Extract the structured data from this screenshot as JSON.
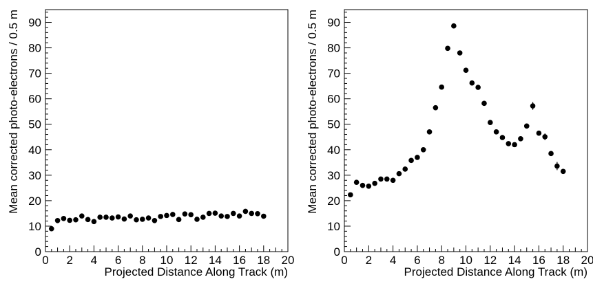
{
  "chart_data": [
    {
      "type": "scatter",
      "xlabel": "Projected Distance Along Track (m)",
      "ylabel": "Mean corrected photo-electrons / 0.5 m",
      "xlim": [
        0,
        20
      ],
      "ylim": [
        0,
        95
      ],
      "x_ticks": [
        "0",
        "2",
        "4",
        "6",
        "8",
        "10",
        "12",
        "14",
        "16",
        "18",
        "20"
      ],
      "y_ticks": [
        "0",
        "10",
        "20",
        "30",
        "40",
        "50",
        "60",
        "70",
        "80",
        "90"
      ],
      "grid": false,
      "series": [
        {
          "points": [
            [
              0.5,
              9.0
            ],
            [
              1.0,
              12.2
            ],
            [
              1.5,
              13.0
            ],
            [
              2.0,
              12.3
            ],
            [
              2.5,
              12.5
            ],
            [
              3.0,
              14.0
            ],
            [
              3.5,
              12.6
            ],
            [
              4.0,
              11.8
            ],
            [
              4.5,
              13.5
            ],
            [
              5.0,
              13.5
            ],
            [
              5.5,
              13.2
            ],
            [
              6.0,
              13.6
            ],
            [
              6.5,
              12.8
            ],
            [
              7.0,
              14.0
            ],
            [
              7.5,
              12.5
            ],
            [
              8.0,
              12.7
            ],
            [
              8.5,
              13.2
            ],
            [
              9.0,
              12.2
            ],
            [
              9.5,
              13.8
            ],
            [
              10.0,
              14.2
            ],
            [
              10.5,
              14.6
            ],
            [
              11.0,
              12.6
            ],
            [
              11.5,
              14.8
            ],
            [
              12.0,
              14.5
            ],
            [
              12.5,
              12.7
            ],
            [
              13.0,
              13.5
            ],
            [
              13.5,
              15.0
            ],
            [
              14.0,
              15.1
            ],
            [
              14.5,
              14.0
            ],
            [
              15.0,
              13.8
            ],
            [
              15.5,
              15.0
            ],
            [
              16.0,
              14.0
            ],
            [
              16.5,
              15.8
            ],
            [
              17.0,
              15.0
            ],
            [
              17.5,
              14.9
            ],
            [
              18.0,
              13.9
            ]
          ],
          "errors": []
        }
      ]
    },
    {
      "type": "scatter",
      "xlabel": "Projected Distance Along Track (m)",
      "ylabel": "Mean corrected photo-electrons / 0.5 m",
      "xlim": [
        0,
        20
      ],
      "ylim": [
        0,
        95
      ],
      "x_ticks": [
        "0",
        "2",
        "4",
        "6",
        "8",
        "10",
        "12",
        "14",
        "16",
        "18",
        "20"
      ],
      "y_ticks": [
        "0",
        "10",
        "20",
        "30",
        "40",
        "50",
        "60",
        "70",
        "80",
        "90"
      ],
      "grid": false,
      "series": [
        {
          "points": [
            [
              0.5,
              22.3
            ],
            [
              1.0,
              27.2
            ],
            [
              1.5,
              26.0
            ],
            [
              2.0,
              25.7
            ],
            [
              2.5,
              26.8
            ],
            [
              3.0,
              28.5
            ],
            [
              3.5,
              28.5
            ],
            [
              4.0,
              28.0
            ],
            [
              4.5,
              30.6
            ],
            [
              5.0,
              32.4
            ],
            [
              5.5,
              35.8
            ],
            [
              6.0,
              37.0
            ],
            [
              6.5,
              40.0
            ],
            [
              7.0,
              47.0
            ],
            [
              7.5,
              56.5
            ],
            [
              8.0,
              64.6
            ],
            [
              8.5,
              79.8
            ],
            [
              9.0,
              88.6
            ],
            [
              9.5,
              78.0
            ],
            [
              10.0,
              71.2
            ],
            [
              10.5,
              66.2
            ],
            [
              11.0,
              64.5
            ],
            [
              11.5,
              58.2
            ],
            [
              12.0,
              50.7
            ],
            [
              12.5,
              47.0
            ],
            [
              13.0,
              44.8
            ],
            [
              13.5,
              42.4
            ],
            [
              14.0,
              42.0
            ],
            [
              14.5,
              44.3
            ],
            [
              15.0,
              49.3
            ],
            [
              15.5,
              57.2
            ],
            [
              16.0,
              46.5
            ],
            [
              16.5,
              45.1
            ],
            [
              17.0,
              38.5
            ],
            [
              17.5,
              33.6
            ],
            [
              18.0,
              31.5
            ]
          ],
          "errors": [
            0,
            0,
            0,
            0,
            0,
            0,
            0,
            0,
            0,
            0,
            0,
            0,
            0,
            0,
            0,
            0,
            0,
            0.9,
            0,
            0,
            0,
            0,
            0,
            0,
            0,
            0,
            0,
            0,
            0,
            0,
            1.5,
            0,
            1.3,
            0,
            1.6,
            0
          ]
        }
      ]
    }
  ]
}
